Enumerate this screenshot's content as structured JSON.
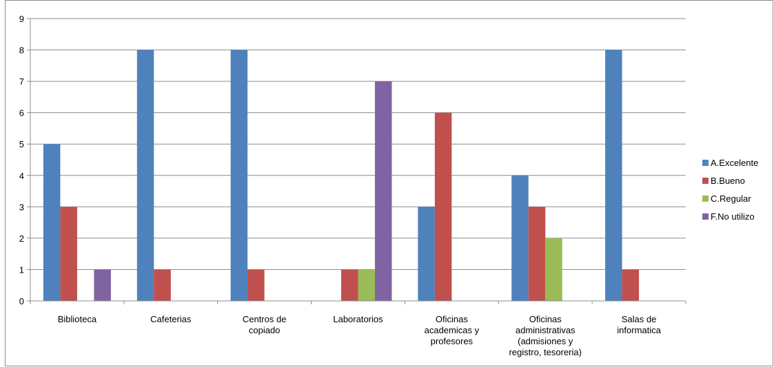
{
  "chart_data": {
    "type": "bar",
    "title": "",
    "xlabel": "",
    "ylabel": "",
    "ylim": [
      0,
      9
    ],
    "yticks": [
      0,
      1,
      2,
      3,
      4,
      5,
      6,
      7,
      8,
      9
    ],
    "grid": true,
    "legend_position": "right",
    "categories": [
      [
        "Biblioteca"
      ],
      [
        "Cafeterias"
      ],
      [
        "Centros de",
        "copiado"
      ],
      [
        "Laboratorios"
      ],
      [
        "Oficinas",
        "academicas y",
        "profesores"
      ],
      [
        "Oficinas",
        "administrativas",
        "(admisiones y",
        "registro, tesoreria)"
      ],
      [
        "Salas de",
        "informatica"
      ]
    ],
    "series": [
      {
        "name": "A.Excelente",
        "color": "#4f81bd",
        "values": [
          5,
          8,
          8,
          0,
          3,
          4,
          8
        ]
      },
      {
        "name": "B.Bueno",
        "color": "#c0504d",
        "values": [
          3,
          1,
          1,
          1,
          6,
          3,
          1
        ]
      },
      {
        "name": "C.Regular",
        "color": "#9bbb59",
        "values": [
          0,
          0,
          0,
          1,
          0,
          2,
          0
        ]
      },
      {
        "name": "F.No utilizo",
        "color": "#8064a2",
        "values": [
          1,
          0,
          0,
          7,
          0,
          0,
          0
        ]
      }
    ]
  }
}
